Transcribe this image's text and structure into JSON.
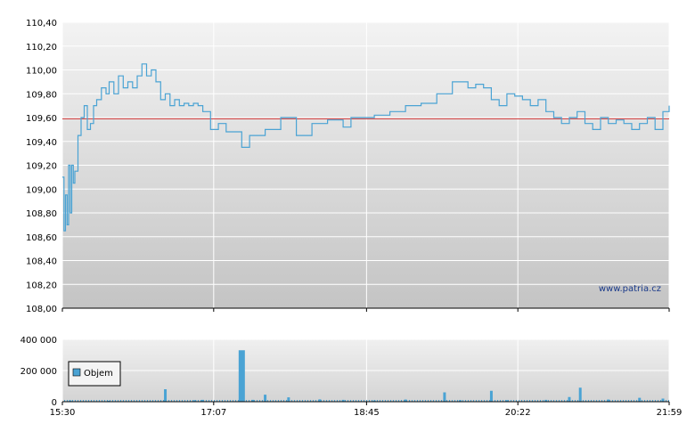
{
  "chart_data": [
    {
      "type": "line",
      "x_ticks": [
        "15:30",
        "17:07",
        "18:45",
        "20:22",
        "21:59"
      ],
      "y_ticks": [
        "108,00",
        "108,20",
        "108,40",
        "108,60",
        "108,80",
        "109,00",
        "109,20",
        "109,40",
        "109,60",
        "109,80",
        "110,00",
        "110,20",
        "110,40"
      ],
      "ylim": [
        108.0,
        110.4
      ],
      "xlim": [
        "15:30",
        "21:59"
      ],
      "reference_line": 109.59,
      "reference_color": "#cc3333",
      "line_color": "#4aa3d4",
      "watermark": "www.patria.cz",
      "grid": true,
      "series": [
        {
          "x": [
            "15:30",
            "15:31",
            "15:32",
            "15:33",
            "15:34",
            "15:35",
            "15:36",
            "15:37",
            "15:38",
            "15:40",
            "15:42",
            "15:44",
            "15:46",
            "15:48",
            "15:50",
            "15:52",
            "15:55",
            "15:58",
            "16:00",
            "16:03",
            "16:06",
            "16:09",
            "16:12",
            "16:15",
            "16:18",
            "16:21",
            "16:24",
            "16:27",
            "16:30",
            "16:33",
            "16:36",
            "16:39",
            "16:42",
            "16:45",
            "16:48",
            "16:51",
            "16:54",
            "16:57",
            "17:00",
            "17:05",
            "17:10",
            "17:15",
            "17:20",
            "17:25",
            "17:30",
            "17:40",
            "17:50",
            "18:00",
            "18:10",
            "18:20",
            "18:30",
            "18:35",
            "18:40",
            "18:50",
            "19:00",
            "19:10",
            "19:20",
            "19:30",
            "19:40",
            "19:50",
            "19:55",
            "20:00",
            "20:05",
            "20:10",
            "20:15",
            "20:20",
            "20:25",
            "20:30",
            "20:35",
            "20:40",
            "20:45",
            "20:50",
            "20:55",
            "21:00",
            "21:05",
            "21:10",
            "21:15",
            "21:20",
            "21:25",
            "21:30",
            "21:35",
            "21:40",
            "21:45",
            "21:50",
            "21:55",
            "21:59"
          ],
          "values": [
            109.1,
            108.65,
            108.95,
            108.7,
            109.2,
            108.8,
            109.2,
            109.05,
            109.15,
            109.45,
            109.6,
            109.7,
            109.5,
            109.55,
            109.7,
            109.75,
            109.85,
            109.8,
            109.9,
            109.8,
            109.95,
            109.85,
            109.9,
            109.85,
            109.95,
            110.05,
            109.95,
            110.0,
            109.9,
            109.75,
            109.8,
            109.7,
            109.75,
            109.7,
            109.72,
            109.7,
            109.72,
            109.7,
            109.65,
            109.5,
            109.55,
            109.48,
            109.48,
            109.35,
            109.45,
            109.5,
            109.6,
            109.45,
            109.55,
            109.58,
            109.52,
            109.6,
            109.6,
            109.62,
            109.65,
            109.7,
            109.72,
            109.8,
            109.9,
            109.85,
            109.88,
            109.85,
            109.75,
            109.7,
            109.8,
            109.78,
            109.75,
            109.7,
            109.75,
            109.65,
            109.6,
            109.55,
            109.6,
            109.65,
            109.55,
            109.5,
            109.6,
            109.55,
            109.58,
            109.55,
            109.5,
            109.55,
            109.6,
            109.5,
            109.65,
            109.7
          ]
        }
      ]
    },
    {
      "type": "bar",
      "x_ticks": [
        "15:30",
        "17:07",
        "18:45",
        "20:22",
        "21:59"
      ],
      "y_ticks": [
        "0",
        "200 000",
        "400 000"
      ],
      "ylim": [
        0,
        400000
      ],
      "legend": "Objem",
      "legend_color": "#4aa3d4",
      "bar_color": "#4aa3d4",
      "series": [
        {
          "name": "Objem",
          "x": [
            "15:35",
            "16:00",
            "16:36",
            "16:55",
            "17:00",
            "17:25",
            "17:32",
            "17:40",
            "17:55",
            "18:15",
            "18:30",
            "18:50",
            "19:10",
            "19:35",
            "19:45",
            "20:05",
            "20:15",
            "20:40",
            "20:55",
            "21:02",
            "21:20",
            "21:40",
            "21:55"
          ],
          "values": [
            8000,
            6000,
            80000,
            10000,
            12000,
            330000,
            12000,
            45000,
            28000,
            15000,
            12000,
            8000,
            14000,
            60000,
            10000,
            70000,
            10000,
            12000,
            30000,
            90000,
            14000,
            25000,
            20000
          ]
        }
      ]
    }
  ]
}
